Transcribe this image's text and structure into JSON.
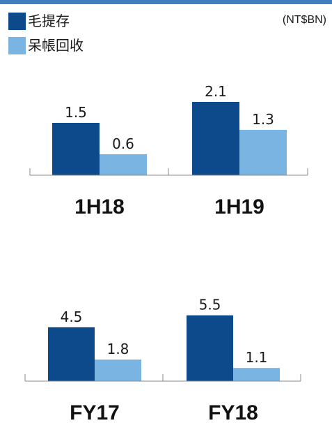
{
  "colors": {
    "top_rule": "#3f7ec3",
    "series_0": "#0d4a8c",
    "series_1": "#7ab4e3",
    "axis": "#8a8a8a"
  },
  "unit_label": "(NT$BN)",
  "chart_data": [
    {
      "type": "bar",
      "categories": [
        "1H18",
        "1H19"
      ],
      "series": [
        {
          "name": "毛提存",
          "values": [
            1.5,
            2.1
          ]
        },
        {
          "name": "呆帳回收",
          "values": [
            0.6,
            1.3
          ]
        }
      ],
      "value_labels": [
        [
          "1.5",
          "2.1"
        ],
        [
          "0.6",
          "1.3"
        ]
      ],
      "ylim": [
        0,
        2.4
      ],
      "legend": "top-left",
      "grid": false
    },
    {
      "type": "bar",
      "categories": [
        "FY17",
        "FY18"
      ],
      "series": [
        {
          "name": "毛提存",
          "values": [
            4.5,
            5.5
          ]
        },
        {
          "name": "呆帳回收",
          "values": [
            1.8,
            1.1
          ]
        }
      ],
      "value_labels": [
        [
          "4.5",
          "5.5"
        ],
        [
          "1.8",
          "1.1"
        ]
      ],
      "ylim": [
        0,
        6.3
      ],
      "legend": "top-left",
      "grid": false
    }
  ]
}
